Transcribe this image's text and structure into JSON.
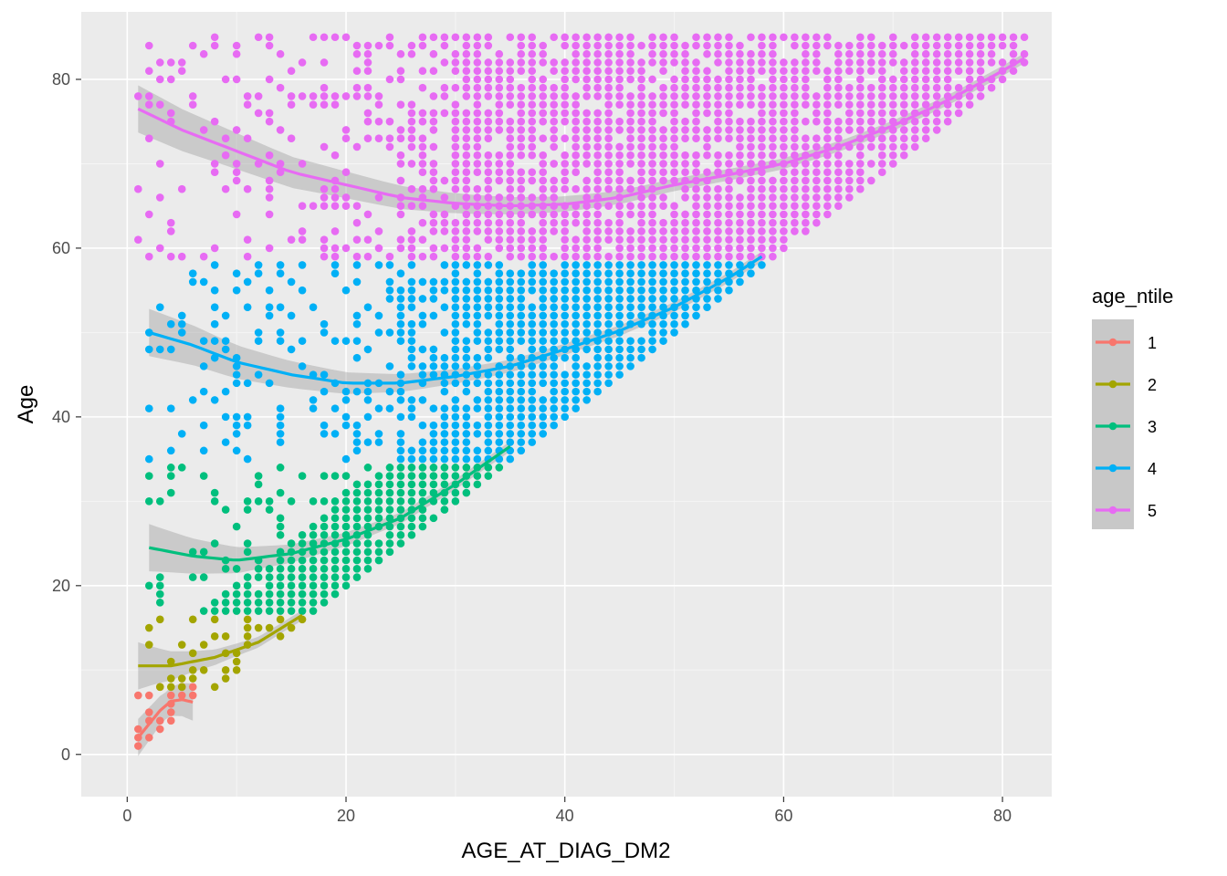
{
  "chart_data": {
    "type": "scatter",
    "title": "",
    "xlabel": "AGE_AT_DIAG_DM2",
    "ylabel": "Age",
    "xlim": [
      -4.2,
      84.5
    ],
    "ylim": [
      -5,
      88
    ],
    "x_ticks": [
      0,
      20,
      40,
      60,
      80
    ],
    "y_ticks": [
      0,
      20,
      40,
      60,
      80
    ],
    "x_tick_labels": [
      "0",
      "20",
      "40",
      "60",
      "80"
    ],
    "y_tick_labels": [
      "0",
      "20",
      "40",
      "60",
      "80"
    ],
    "grid": true,
    "smoother": "quadratic fit with grey confidence band",
    "legend": {
      "title": "age_ntile",
      "position": "right"
    },
    "series": [
      {
        "name": "1",
        "color": "#F8766D",
        "y_range": [
          0,
          8
        ],
        "x_range": [
          1,
          6
        ],
        "fit": [
          [
            1,
            2
          ],
          [
            2,
            3.6
          ],
          [
            3,
            5.2
          ],
          [
            4,
            6.3
          ],
          [
            5,
            6.5
          ],
          [
            6,
            6.2
          ]
        ]
      },
      {
        "name": "2",
        "color": "#A3A500",
        "y_range": [
          8,
          16
        ],
        "x_range": [
          1,
          16
        ],
        "fit": [
          [
            1,
            10.5
          ],
          [
            4,
            10.5
          ],
          [
            8,
            11.5
          ],
          [
            12,
            13.3
          ],
          [
            16,
            16.5
          ]
        ]
      },
      {
        "name": "3",
        "color": "#00BF7D",
        "y_range": [
          17,
          34
        ],
        "x_range": [
          2,
          35
        ],
        "fit": [
          [
            2,
            24.5
          ],
          [
            6,
            23.5
          ],
          [
            10,
            23
          ],
          [
            15,
            23.8
          ],
          [
            20,
            25.5
          ],
          [
            25,
            28
          ],
          [
            30,
            32
          ],
          [
            35,
            36.5
          ]
        ]
      },
      {
        "name": "4",
        "color": "#00B0F6",
        "y_range": [
          35,
          58
        ],
        "x_range": [
          2,
          58
        ],
        "fit": [
          [
            2,
            50
          ],
          [
            6,
            48.5
          ],
          [
            10,
            46.5
          ],
          [
            15,
            45
          ],
          [
            20,
            44
          ],
          [
            25,
            44
          ],
          [
            30,
            44.8
          ],
          [
            35,
            46
          ],
          [
            40,
            48
          ],
          [
            45,
            50.2
          ],
          [
            50,
            53
          ],
          [
            55,
            56.5
          ],
          [
            58,
            59
          ]
        ]
      },
      {
        "name": "5",
        "color": "#E76BF3",
        "y_range": [
          59,
          85
        ],
        "x_range": [
          1,
          82
        ],
        "fit": [
          [
            1,
            76.5
          ],
          [
            5,
            74
          ],
          [
            10,
            71.5
          ],
          [
            15,
            69
          ],
          [
            20,
            67.5
          ],
          [
            25,
            66
          ],
          [
            30,
            65.3
          ],
          [
            35,
            65
          ],
          [
            40,
            65.2
          ],
          [
            45,
            66
          ],
          [
            50,
            67.5
          ],
          [
            55,
            68.7
          ],
          [
            60,
            70
          ],
          [
            65,
            72
          ],
          [
            70,
            74.5
          ],
          [
            75,
            77.5
          ],
          [
            80,
            81
          ],
          [
            82,
            82.5
          ]
        ]
      }
    ]
  }
}
